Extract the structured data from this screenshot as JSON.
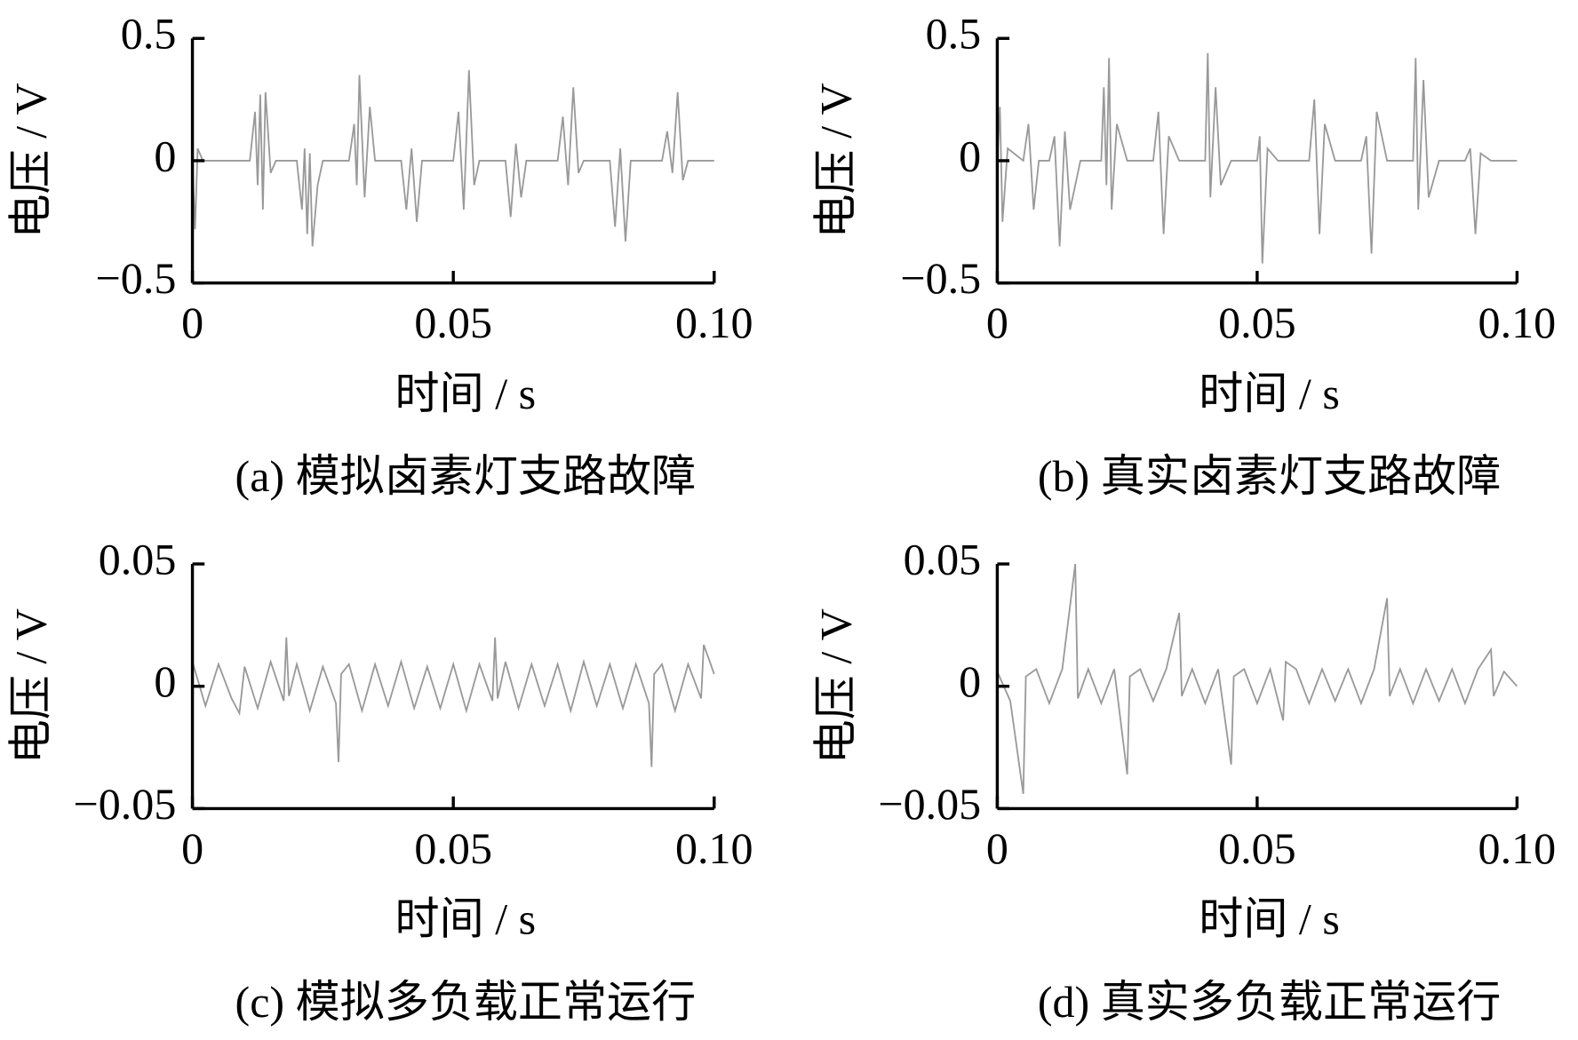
{
  "chart_data": [
    {
      "type": "line",
      "caption": "(a)  模拟卤素灯支路故障",
      "xlabel": "时间 / s",
      "ylabel": "电压 / V",
      "xlim": [
        0,
        0.1
      ],
      "xticks": [
        0,
        0.05,
        {
          "value": 0.1,
          "label": "0.10"
        }
      ],
      "ylim": [
        -0.5,
        0.5
      ],
      "yticks": [
        0.5,
        0,
        {
          "value": -0.5,
          "label": "−0.5"
        }
      ],
      "grid": false,
      "series": [
        {
          "color": "#999999",
          "x": [
            0,
            0.0005,
            0.001,
            0.002,
            0.011,
            0.012,
            0.0125,
            0.013,
            0.0135,
            0.014,
            0.015,
            0.016,
            0.02,
            0.021,
            0.0215,
            0.022,
            0.0225,
            0.023,
            0.024,
            0.025,
            0.03,
            0.031,
            0.0315,
            0.032,
            0.033,
            0.034,
            0.035,
            0.04,
            0.041,
            0.042,
            0.043,
            0.044,
            0.05,
            0.051,
            0.052,
            0.053,
            0.054,
            0.055,
            0.06,
            0.061,
            0.062,
            0.063,
            0.064,
            0.07,
            0.071,
            0.072,
            0.073,
            0.074,
            0.075,
            0.08,
            0.081,
            0.082,
            0.083,
            0.084,
            0.09,
            0.091,
            0.092,
            0.093,
            0.094,
            0.095,
            0.1
          ],
          "values": [
            0,
            -0.28,
            0.05,
            0,
            0,
            0.2,
            -0.1,
            0.27,
            -0.2,
            0.28,
            -0.05,
            0,
            0,
            -0.2,
            0.05,
            -0.3,
            0.03,
            -0.35,
            -0.1,
            0,
            0,
            0.15,
            -0.1,
            0.35,
            -0.15,
            0.22,
            0,
            0,
            -0.2,
            0.05,
            -0.25,
            0,
            0,
            0.2,
            -0.2,
            0.37,
            -0.1,
            0,
            0,
            -0.23,
            0.07,
            -0.15,
            0,
            0,
            0.18,
            -0.1,
            0.3,
            -0.05,
            0,
            0,
            -0.27,
            0.05,
            -0.33,
            0,
            0,
            0.12,
            -0.05,
            0.28,
            -0.08,
            0,
            0
          ]
        }
      ]
    },
    {
      "type": "line",
      "caption": "(b)  真实卤素灯支路故障",
      "xlabel": "时间 / s",
      "ylabel": "电压 / V",
      "xlim": [
        0,
        0.1
      ],
      "xticks": [
        0,
        0.05,
        {
          "value": 0.1,
          "label": "0.10"
        }
      ],
      "ylim": [
        -0.5,
        0.5
      ],
      "yticks": [
        0.5,
        0,
        {
          "value": -0.5,
          "label": "−0.5"
        }
      ],
      "grid": false,
      "series": [
        {
          "color": "#999999",
          "x": [
            0,
            0.0005,
            0.001,
            0.002,
            0.005,
            0.006,
            0.007,
            0.008,
            0.01,
            0.011,
            0.012,
            0.013,
            0.014,
            0.016,
            0.02,
            0.0205,
            0.021,
            0.0215,
            0.022,
            0.023,
            0.025,
            0.03,
            0.031,
            0.032,
            0.033,
            0.035,
            0.04,
            0.0405,
            0.041,
            0.042,
            0.043,
            0.045,
            0.05,
            0.0505,
            0.051,
            0.052,
            0.054,
            0.06,
            0.061,
            0.062,
            0.063,
            0.065,
            0.07,
            0.071,
            0.072,
            0.073,
            0.075,
            0.08,
            0.0805,
            0.081,
            0.082,
            0.083,
            0.085,
            0.09,
            0.091,
            0.092,
            0.093,
            0.095,
            0.1
          ],
          "values": [
            0,
            0.22,
            -0.25,
            0.05,
            0,
            0.15,
            -0.2,
            0,
            0,
            0.1,
            -0.35,
            0.12,
            -0.2,
            0,
            0,
            0.3,
            -0.1,
            0.42,
            -0.2,
            0.15,
            0,
            0,
            0.2,
            -0.3,
            0.1,
            0,
            0,
            0.44,
            -0.15,
            0.3,
            -0.1,
            0,
            0,
            0.1,
            -0.42,
            0.05,
            0,
            0,
            0.25,
            -0.3,
            0.15,
            0,
            0,
            0.1,
            -0.38,
            0.2,
            0,
            0,
            0.42,
            -0.2,
            0.33,
            -0.15,
            0,
            0,
            0.05,
            -0.3,
            0.03,
            0,
            0
          ]
        }
      ]
    },
    {
      "type": "line",
      "caption": "(c)  模拟多负载正常运行",
      "xlabel": "时间 / s",
      "ylabel": "电压 / V",
      "xlim": [
        0,
        0.1
      ],
      "xticks": [
        0,
        0.05,
        {
          "value": 0.1,
          "label": "0.10"
        }
      ],
      "ylim": [
        -0.05,
        0.05
      ],
      "yticks": [
        0.05,
        0,
        {
          "value": -0.05,
          "label": "−0.05"
        }
      ],
      "grid": false,
      "series": [
        {
          "color": "#999999",
          "x": [
            0,
            0.0025,
            0.005,
            0.0075,
            0.009,
            0.01,
            0.0125,
            0.015,
            0.0175,
            0.018,
            0.0185,
            0.02,
            0.0225,
            0.025,
            0.0275,
            0.028,
            0.0285,
            0.03,
            0.0325,
            0.035,
            0.0375,
            0.04,
            0.0425,
            0.045,
            0.0475,
            0.05,
            0.0525,
            0.055,
            0.0575,
            0.058,
            0.0585,
            0.06,
            0.0625,
            0.065,
            0.0675,
            0.07,
            0.0725,
            0.075,
            0.0775,
            0.08,
            0.0825,
            0.085,
            0.0875,
            0.088,
            0.0885,
            0.09,
            0.0925,
            0.095,
            0.0975,
            0.098,
            0.1
          ],
          "values": [
            0.01,
            -0.008,
            0.009,
            -0.005,
            -0.011,
            0.008,
            -0.009,
            0.01,
            -0.006,
            0.02,
            -0.004,
            0.009,
            -0.01,
            0.008,
            -0.007,
            -0.031,
            0.005,
            0.009,
            -0.01,
            0.009,
            -0.008,
            0.01,
            -0.009,
            0.008,
            -0.009,
            0.009,
            -0.01,
            0.009,
            -0.006,
            0.02,
            -0.005,
            0.01,
            -0.009,
            0.009,
            -0.008,
            0.009,
            -0.01,
            0.01,
            -0.008,
            0.009,
            -0.009,
            0.009,
            -0.007,
            -0.033,
            0.005,
            0.009,
            -0.01,
            0.009,
            -0.005,
            0.017,
            0.005
          ]
        }
      ]
    },
    {
      "type": "line",
      "caption": "(d)  真实多负载正常运行",
      "xlabel": "时间 / s",
      "ylabel": "电压 / V",
      "xlim": [
        0,
        0.1
      ],
      "xticks": [
        0,
        0.05,
        {
          "value": 0.1,
          "label": "0.10"
        }
      ],
      "ylim": [
        -0.05,
        0.05
      ],
      "yticks": [
        0.05,
        0,
        {
          "value": -0.05,
          "label": "−0.05"
        }
      ],
      "grid": false,
      "series": [
        {
          "color": "#999999",
          "x": [
            0,
            0.0025,
            0.005,
            0.0055,
            0.0075,
            0.01,
            0.0125,
            0.015,
            0.0155,
            0.0175,
            0.02,
            0.0225,
            0.025,
            0.0255,
            0.0275,
            0.03,
            0.0325,
            0.035,
            0.0355,
            0.0375,
            0.04,
            0.0425,
            0.045,
            0.0455,
            0.0475,
            0.05,
            0.0525,
            0.055,
            0.0555,
            0.0575,
            0.06,
            0.0625,
            0.065,
            0.0675,
            0.07,
            0.0725,
            0.075,
            0.0755,
            0.0775,
            0.08,
            0.0825,
            0.085,
            0.0875,
            0.09,
            0.0925,
            0.095,
            0.0955,
            0.0975,
            0.1
          ],
          "values": [
            0.006,
            -0.006,
            -0.044,
            0.004,
            0.007,
            -0.007,
            0.007,
            0.05,
            -0.005,
            0.007,
            -0.007,
            0.007,
            -0.036,
            0.004,
            0.007,
            -0.006,
            0.007,
            0.03,
            -0.004,
            0.007,
            -0.007,
            0.007,
            -0.032,
            0.004,
            0.007,
            -0.007,
            0.007,
            -0.014,
            0.01,
            0.007,
            -0.007,
            0.007,
            -0.006,
            0.007,
            -0.007,
            0.007,
            0.036,
            -0.004,
            0.007,
            -0.007,
            0.007,
            -0.006,
            0.007,
            -0.007,
            0.007,
            0.015,
            -0.004,
            0.006,
            0
          ]
        }
      ]
    }
  ]
}
